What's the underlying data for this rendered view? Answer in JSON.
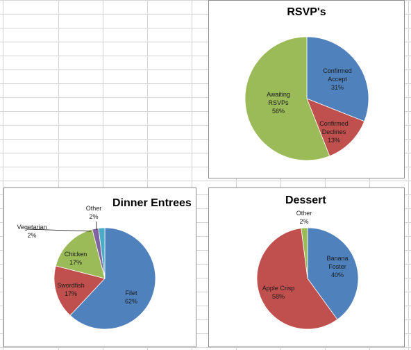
{
  "colors": {
    "blue": "#4f81bd",
    "red": "#c0504d",
    "green": "#9bbb59",
    "purple": "#8064a2",
    "cyan": "#4bacc6",
    "olive": "#9bbb59"
  },
  "chart_data": [
    {
      "type": "pie",
      "title": "RSVP's",
      "slices": [
        {
          "label": [
            "Confirmed",
            "Accept"
          ],
          "value": 31,
          "pct": "31%",
          "color": "#4f81bd"
        },
        {
          "label": [
            "Confirmed",
            "Declines"
          ],
          "value": 13,
          "pct": "13%",
          "color": "#c0504d"
        },
        {
          "label": [
            "Awaiting",
            "RSVPs"
          ],
          "value": 56,
          "pct": "56%",
          "color": "#9bbb59"
        }
      ]
    },
    {
      "type": "pie",
      "title": "Dinner Entrees",
      "slices": [
        {
          "label": [
            "Filet"
          ],
          "value": 62,
          "pct": "62%",
          "color": "#4f81bd"
        },
        {
          "label": [
            "Swordfish"
          ],
          "value": 17,
          "pct": "17%",
          "color": "#c0504d"
        },
        {
          "label": [
            "Chicken"
          ],
          "value": 17,
          "pct": "17%",
          "color": "#9bbb59"
        },
        {
          "label": [
            "Vegetarian"
          ],
          "value": 2,
          "pct": "2%",
          "color": "#8064a2"
        },
        {
          "label": [
            "Other"
          ],
          "value": 2,
          "pct": "2%",
          "color": "#4bacc6"
        }
      ]
    },
    {
      "type": "pie",
      "title": "Dessert",
      "slices": [
        {
          "label": [
            "Banana",
            "Foster"
          ],
          "value": 40,
          "pct": "40%",
          "color": "#4f81bd"
        },
        {
          "label": [
            "Apple Crisp"
          ],
          "value": 58,
          "pct": "58%",
          "color": "#c0504d"
        },
        {
          "label": [
            "Other"
          ],
          "value": 2,
          "pct": "2%",
          "color": "#9bbb59"
        }
      ]
    }
  ]
}
